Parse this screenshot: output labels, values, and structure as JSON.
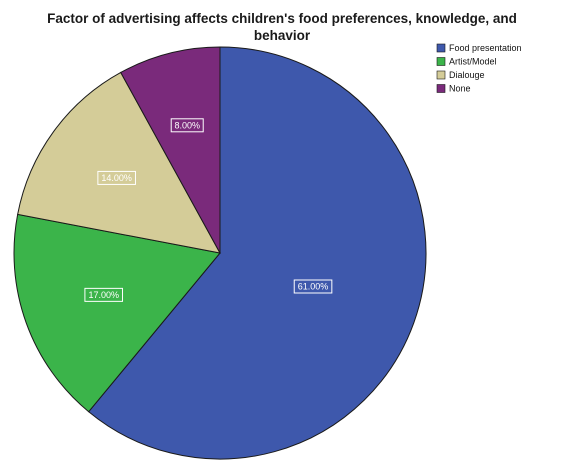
{
  "chart_data": {
    "type": "pie",
    "title": "Factor of advertising affects children's food preferences, knowledge, and behavior",
    "title_lines": [
      "Factor of advertising affects children's food preferences, knowledge, and",
      "behavior"
    ],
    "legend_position": "top-right",
    "slices": [
      {
        "label": "Food presentation",
        "value": 61.0,
        "display": "61.00%",
        "color": "#3e58ac"
      },
      {
        "label": "Artist/Model",
        "value": 17.0,
        "display": "17.00%",
        "color": "#3bb44a"
      },
      {
        "label": "Dialouge",
        "value": 14.0,
        "display": "14.00%",
        "color": "#d4cc98"
      },
      {
        "label": "None",
        "value": 8.0,
        "display": "8.00%",
        "color": "#7a2a7b"
      }
    ]
  }
}
